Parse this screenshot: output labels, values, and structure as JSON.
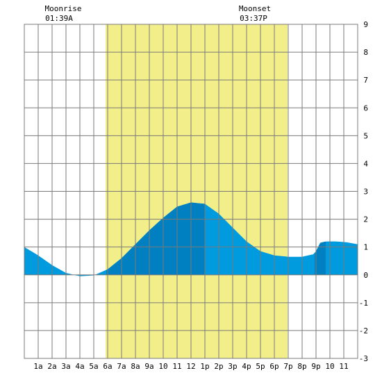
{
  "moon": {
    "rise_title": "Moonrise",
    "rise_time": "01:39A",
    "set_title": "Moonset",
    "set_time": "03:37P"
  },
  "chart_data": {
    "type": "area",
    "title": "",
    "xlabel": "",
    "ylabel": "",
    "x_tick_labels": [
      "1a",
      "2a",
      "3a",
      "4a",
      "5a",
      "6a",
      "7a",
      "8a",
      "9a",
      "10",
      "11",
      "12",
      "1p",
      "2p",
      "3p",
      "4p",
      "5p",
      "6p",
      "7p",
      "8p",
      "9p",
      "10",
      "11"
    ],
    "xlim": [
      0,
      24
    ],
    "ylim": [
      -3,
      9
    ],
    "y_ticks": [
      9,
      8,
      7,
      6,
      5,
      4,
      3,
      2,
      1,
      0,
      -1,
      -2,
      -3
    ],
    "grid": true,
    "daylight": {
      "start": 5.85,
      "end": 18.95,
      "color": "#f2ee8a"
    },
    "moon_events": {
      "moonrise_hour": 1.65,
      "moonset_hour": 15.62
    },
    "series": [
      {
        "x": [
          0,
          1,
          2,
          3,
          4,
          5,
          6,
          7,
          8,
          9,
          10,
          11,
          12,
          13,
          14,
          15,
          16,
          17,
          18,
          19,
          20,
          20.9,
          21.3,
          21.7,
          22.5,
          23.2,
          24
        ],
        "y": [
          1.0,
          0.7,
          0.35,
          0.07,
          -0.05,
          -0.02,
          0.2,
          0.6,
          1.1,
          1.6,
          2.05,
          2.45,
          2.6,
          2.55,
          2.2,
          1.7,
          1.2,
          0.85,
          0.7,
          0.65,
          0.65,
          0.75,
          1.15,
          1.2,
          1.2,
          1.17,
          1.1
        ]
      }
    ],
    "colors": {
      "tide": "#009bdf",
      "tide_dark": "#0080c0",
      "grid": "#7a7a7a",
      "background": "#ffffff"
    },
    "dark_segments": [
      [
        5.9,
        13.0
      ],
      [
        20.9,
        21.7
      ]
    ]
  }
}
